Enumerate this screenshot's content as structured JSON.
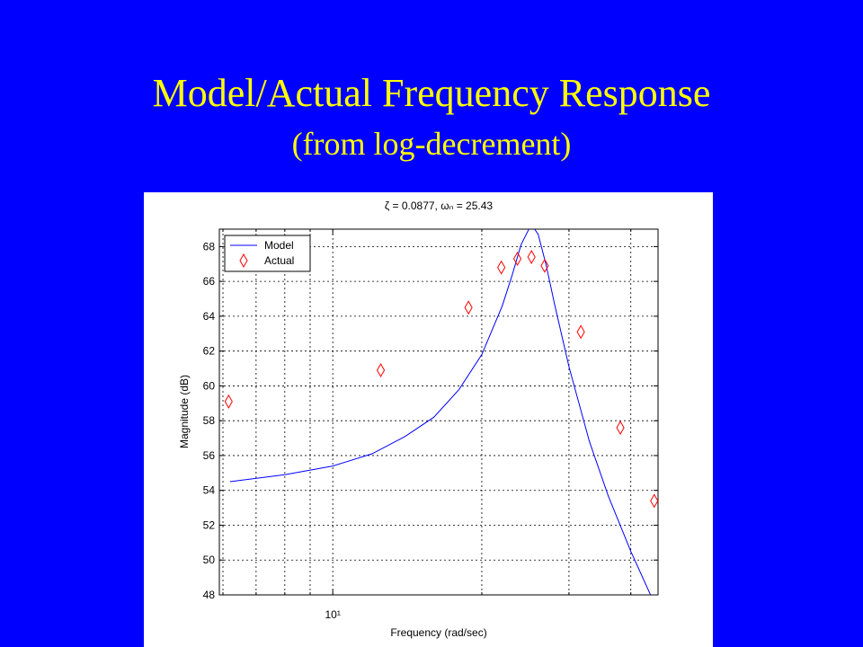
{
  "header": {
    "title": "Model/Actual Frequency Response",
    "subtitle": "(from log-decrement)"
  },
  "chart_data": {
    "type": "line",
    "title": "ζ = 0.0877, ωₙ = 25.43",
    "x_label": "Frequency (rad/sec)",
    "y_label": "Magnitude (dB)",
    "xscale": "log",
    "xlim": [
      5.9,
      45.4
    ],
    "ylim": [
      48,
      69
    ],
    "xticks": [
      {
        "value": 10,
        "label": "10¹"
      }
    ],
    "xminor": [
      6,
      7,
      8,
      9,
      20,
      30,
      40
    ],
    "yticks": [
      48,
      50,
      52,
      54,
      56,
      58,
      60,
      62,
      64,
      66,
      68
    ],
    "grid": true,
    "legend": "upper left",
    "series": [
      {
        "name": "Model",
        "color": "#0000ff",
        "marker": "none",
        "x": [
          6.2,
          8,
          10,
          12,
          14,
          16,
          18,
          20,
          22,
          23,
          24,
          25,
          25.43,
          26,
          27,
          28,
          30,
          33,
          36,
          40,
          44
        ],
        "values": [
          54.5,
          54.9,
          55.4,
          56.1,
          57.1,
          58.2,
          59.8,
          61.8,
          64.6,
          66.3,
          68.1,
          69.1,
          69.1,
          68.7,
          66.9,
          64.8,
          61.1,
          56.8,
          53.7,
          50.5,
          47.9
        ]
      },
      {
        "name": "Actual",
        "color": "#ff0000",
        "marker": "diamond",
        "x": [
          6.16,
          12.5,
          18.8,
          21.9,
          23.6,
          25.2,
          26.8,
          31.7,
          38.1,
          44.6
        ],
        "values": [
          59.1,
          60.9,
          64.5,
          66.8,
          67.3,
          67.4,
          66.9,
          63.1,
          57.6,
          53.4
        ]
      }
    ]
  }
}
